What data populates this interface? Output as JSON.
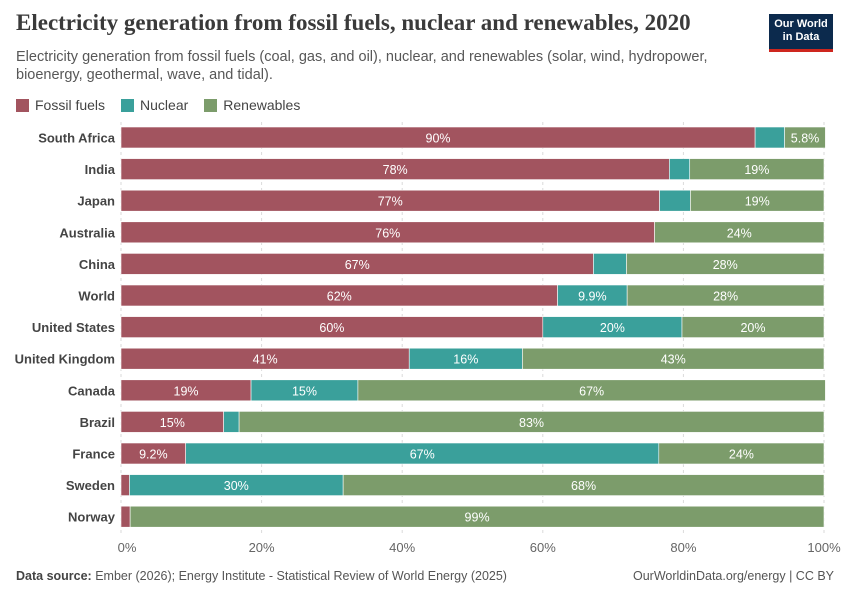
{
  "header": {
    "title": "Electricity generation from fossil fuels, nuclear and renewables, 2020",
    "subtitle": "Electricity generation from fossil fuels (coal, gas, and oil), nuclear, and renewables (solar, wind, hydropower, bioenergy, geothermal, wave, and tidal).",
    "logo_line1": "Our World",
    "logo_line2": "in Data"
  },
  "footer": {
    "source_label": "Data source:",
    "source_text": "Ember (2026); Energy Institute - Statistical Review of World Energy (2025)",
    "right_text": "OurWorldinData.org/energy | CC BY"
  },
  "colors": {
    "fossil": "#a2545f",
    "nuclear": "#3aa09b",
    "renewables": "#7c9c6b",
    "logo_bg": "#0c2a4d",
    "logo_accent": "#ce261e"
  },
  "chart_data": {
    "type": "bar",
    "orientation": "horizontal",
    "stacked": true,
    "title": "Electricity generation from fossil fuels, nuclear and renewables, 2020",
    "xlim": [
      0,
      100
    ],
    "x_ticks": [
      "0%",
      "20%",
      "40%",
      "60%",
      "80%",
      "100%"
    ],
    "legend_position": "top-left",
    "categories": [
      "South Africa",
      "India",
      "Japan",
      "Australia",
      "China",
      "World",
      "United States",
      "United Kingdom",
      "Canada",
      "Brazil",
      "France",
      "Sweden",
      "Norway"
    ],
    "series": [
      {
        "name": "Fossil fuels",
        "values": [
          90.2,
          78.0,
          76.6,
          75.9,
          67.2,
          62.1,
          60.0,
          41.0,
          18.5,
          14.6,
          9.2,
          1.2,
          1.3
        ],
        "labels": [
          "90%",
          "78%",
          "77%",
          "76%",
          "67%",
          "62%",
          "60%",
          "41%",
          "19%",
          "15%",
          "9.2%",
          "",
          ""
        ]
      },
      {
        "name": "Nuclear",
        "values": [
          4.2,
          2.9,
          4.4,
          0.0,
          4.7,
          9.9,
          19.8,
          16.1,
          15.2,
          2.2,
          67.3,
          30.4,
          0.0
        ],
        "labels": [
          "",
          "",
          "",
          "",
          "",
          "9.9%",
          "20%",
          "16%",
          "15%",
          "",
          "67%",
          "30%",
          ""
        ]
      },
      {
        "name": "Renewables",
        "values": [
          5.8,
          19.1,
          19.0,
          24.1,
          28.1,
          28.0,
          20.2,
          42.9,
          66.5,
          83.2,
          23.5,
          68.4,
          98.7
        ],
        "labels": [
          "5.8%",
          "19%",
          "19%",
          "24%",
          "28%",
          "28%",
          "20%",
          "43%",
          "67%",
          "83%",
          "24%",
          "68%",
          "99%"
        ]
      }
    ]
  }
}
